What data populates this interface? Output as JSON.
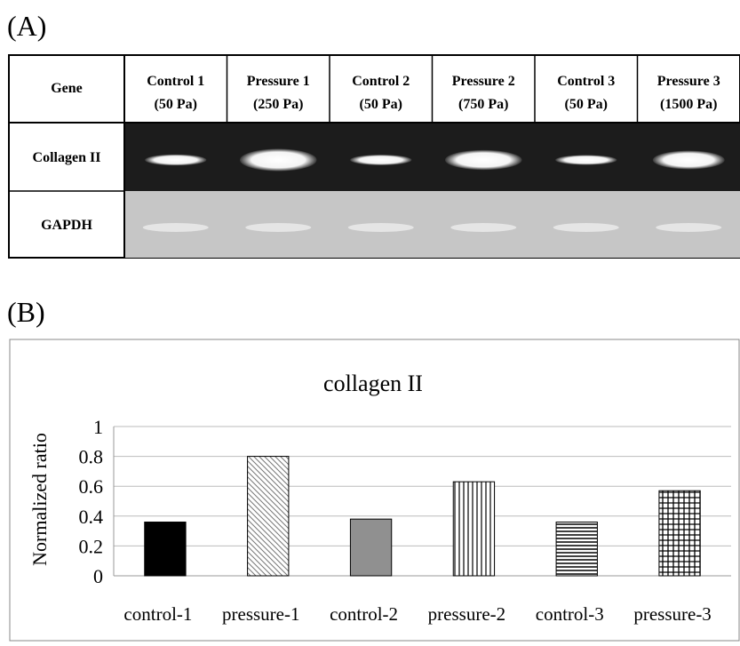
{
  "panel_a": {
    "label": "(A)",
    "header": "Gene",
    "columns": [
      {
        "name": "Control 1",
        "pressure": "(50 Pa)"
      },
      {
        "name": "Pressure 1",
        "pressure": "(250 Pa)"
      },
      {
        "name": "Control 2",
        "pressure": "(50 Pa)"
      },
      {
        "name": "Pressure 2",
        "pressure": "(750 Pa)"
      },
      {
        "name": "Control 3",
        "pressure": "(50 Pa)"
      },
      {
        "name": "Pressure 3",
        "pressure": "(1500 Pa)"
      }
    ],
    "rows": [
      "Collagen II",
      "GAPDH"
    ]
  },
  "panel_b": {
    "label": "(B)"
  },
  "chart_data": {
    "type": "bar",
    "title": "collagen II",
    "y_label": "Normalized ratio",
    "categories": [
      "control-1",
      "pressure-1",
      "control-2",
      "pressure-2",
      "control-3",
      "pressure-3"
    ],
    "values": [
      0.36,
      0.8,
      0.38,
      0.63,
      0.36,
      0.57
    ],
    "ylim": [
      0,
      1
    ],
    "yticks": [
      0,
      0.2,
      0.4,
      0.6,
      0.8,
      1
    ],
    "grid": true
  }
}
